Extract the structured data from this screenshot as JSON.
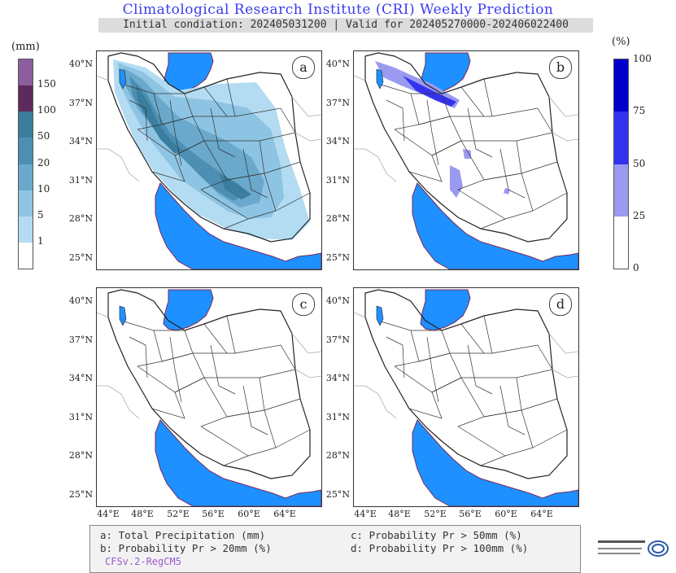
{
  "title": "Climatological Research Institute (CRI) Weekly Prediction",
  "subtitle": "Initial condiation: 202405031200 | Valid for 202405270000-202406022400",
  "colorbar_left": {
    "unit": "(mm)",
    "labels": [
      "150",
      "100",
      "50",
      "20",
      "10",
      "5",
      "1"
    ],
    "colors": [
      "#8d5e9e",
      "#5e2a5e",
      "#3a7d9c",
      "#4d8fb3",
      "#6aa9cc",
      "#8ec4e3",
      "#b3dcf2",
      "#ffffff"
    ]
  },
  "colorbar_right": {
    "unit": "(%)",
    "labels": [
      "100",
      "75",
      "50",
      "25",
      "0"
    ],
    "colors": [
      "#0000cc",
      "#3333ee",
      "#9a9af0",
      "#ffffff"
    ]
  },
  "panels": [
    {
      "id": "a"
    },
    {
      "id": "b"
    },
    {
      "id": "c"
    },
    {
      "id": "d"
    }
  ],
  "lat_ticks": [
    "40°N",
    "37°N",
    "34°N",
    "31°N",
    "28°N",
    "25°N"
  ],
  "lon_ticks": [
    "44°E",
    "48°E",
    "52°E",
    "56°E",
    "60°E",
    "64°E"
  ],
  "legend": {
    "a": "a: Total Precipitation (mm)",
    "b": "b: Probability Pr > 20mm (%)",
    "c": "c: Probability Pr > 50mm (%)",
    "d": "d: Probability Pr > 100mm (%)",
    "model": "CFSv.2-RegCM5"
  },
  "colors": {
    "sea": "#1e90ff",
    "title": "#3a3af0"
  }
}
